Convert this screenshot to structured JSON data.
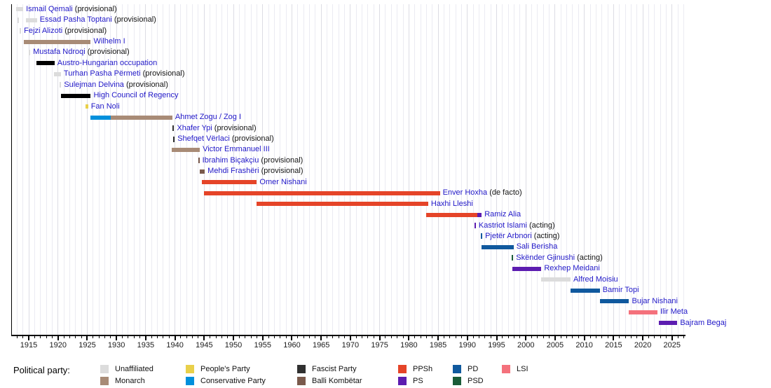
{
  "chart_data": {
    "type": "timeline",
    "axis": {
      "start": 1912,
      "end": 2027.3,
      "major_ticks": [
        1915,
        1920,
        1925,
        1930,
        1935,
        1940,
        1945,
        1950,
        1955,
        1960,
        1965,
        1970,
        1975,
        1980,
        1985,
        1990,
        1995,
        2000,
        2005,
        2010,
        2015,
        2020,
        2025
      ],
      "minor_tick_step": 1
    },
    "rows": [
      {
        "name": "Ismail Qemali",
        "qualifier": "(provisional)",
        "segments": [
          {
            "start": 1912.85,
            "end": 1914.05,
            "party": "Unaffiliated"
          }
        ]
      },
      {
        "name": "Essad Pasha Toptani",
        "qualifier": "(provisional)",
        "segments": [
          {
            "start": 1913.1,
            "end": 1913.4,
            "party": "Unaffiliated"
          },
          {
            "start": 1914.5,
            "end": 1916.4,
            "party": "Unaffiliated"
          }
        ]
      },
      {
        "name": "Fejzi Alizoti",
        "qualifier": "(provisional)",
        "segments": [
          {
            "start": 1913.45,
            "end": 1913.7,
            "party": "Unaffiliated"
          }
        ]
      },
      {
        "name": "Wilhelm I",
        "qualifier": "",
        "segments": [
          {
            "start": 1914.2,
            "end": 1925.6,
            "party": "Monarch"
          }
        ]
      },
      {
        "name": "Mustafa Ndroqi",
        "qualifier": "(provisional)",
        "segments": [
          {
            "start": 1915.0,
            "end": 1915.25,
            "party": "Unaffiliated"
          }
        ]
      },
      {
        "name": "Austro-Hungarian occupation",
        "qualifier": "",
        "segments": [
          {
            "start": 1916.3,
            "end": 1919.4,
            "party": "Black"
          }
        ]
      },
      {
        "name": "Turhan Pasha Përmeti",
        "qualifier": "(provisional)",
        "segments": [
          {
            "start": 1919.35,
            "end": 1920.5,
            "party": "Unaffiliated"
          }
        ]
      },
      {
        "name": "Sulejman Delvina",
        "qualifier": "(provisional)",
        "segments": [
          {
            "start": 1920.3,
            "end": 1920.55,
            "party": "Unaffiliated"
          }
        ]
      },
      {
        "name": "High Council of Regency",
        "qualifier": "",
        "segments": [
          {
            "start": 1920.5,
            "end": 1925.6,
            "party": "Black"
          }
        ]
      },
      {
        "name": "Fan Noli",
        "qualifier": "",
        "segments": [
          {
            "start": 1924.7,
            "end": 1925.15,
            "party": "People's Party"
          }
        ]
      },
      {
        "name": "Ahmet Zogu / Zog I",
        "qualifier": "",
        "segments": [
          {
            "start": 1925.5,
            "end": 1929.0,
            "party": "Conservative Party"
          },
          {
            "start": 1929.0,
            "end": 1939.55,
            "party": "Monarch"
          }
        ]
      },
      {
        "name": "Xhafer Ypi",
        "qualifier": "(provisional)",
        "segments": [
          {
            "start": 1939.6,
            "end": 1939.85,
            "party": "Fascist Party"
          }
        ]
      },
      {
        "name": "Shefqet Vërlaci",
        "qualifier": "(provisional)",
        "segments": [
          {
            "start": 1939.7,
            "end": 1939.95,
            "party": "Fascist Party"
          }
        ]
      },
      {
        "name": "Victor Emmanuel III",
        "qualifier": "",
        "segments": [
          {
            "start": 1939.45,
            "end": 1944.25,
            "party": "Monarch"
          }
        ]
      },
      {
        "name": "Ibrahim Biçakçiu",
        "qualifier": "(provisional)",
        "segments": [
          {
            "start": 1943.95,
            "end": 1944.2,
            "party": "Balli Kombëtar"
          }
        ]
      },
      {
        "name": "Mehdi Frashëri",
        "qualifier": "(provisional)",
        "segments": [
          {
            "start": 1944.2,
            "end": 1945.1,
            "party": "Balli Kombëtar"
          }
        ]
      },
      {
        "name": "Omer Nishani",
        "qualifier": "",
        "segments": [
          {
            "start": 1944.6,
            "end": 1954.0,
            "party": "PPSh"
          }
        ]
      },
      {
        "name": "Enver Hoxha",
        "qualifier": "(de facto)",
        "segments": [
          {
            "start": 1945.0,
            "end": 1985.3,
            "party": "PPSh"
          }
        ]
      },
      {
        "name": "Haxhi Lleshi",
        "qualifier": "",
        "segments": [
          {
            "start": 1954.0,
            "end": 1983.3,
            "party": "PPSh"
          }
        ]
      },
      {
        "name": "Ramiz Alia",
        "qualifier": "",
        "segments": [
          {
            "start": 1983.0,
            "end": 1991.7,
            "party": "PPSh"
          },
          {
            "start": 1991.7,
            "end": 1992.45,
            "party": "PS"
          }
        ]
      },
      {
        "name": "Kastriot Islami",
        "qualifier": "(acting)",
        "segments": [
          {
            "start": 1991.2,
            "end": 1991.45,
            "party": "PS"
          }
        ]
      },
      {
        "name": "Pjetër Arbnori",
        "qualifier": "(acting)",
        "segments": [
          {
            "start": 1992.3,
            "end": 1992.55,
            "party": "PD"
          }
        ]
      },
      {
        "name": "Sali Berisha",
        "qualifier": "",
        "segments": [
          {
            "start": 1992.45,
            "end": 1997.9,
            "party": "PD"
          }
        ]
      },
      {
        "name": "Skënder Gjinushi",
        "qualifier": "(acting)",
        "segments": [
          {
            "start": 1997.6,
            "end": 1997.85,
            "party": "PSD"
          }
        ]
      },
      {
        "name": "Rexhep Meidani",
        "qualifier": "",
        "segments": [
          {
            "start": 1997.7,
            "end": 2002.65,
            "party": "PS"
          }
        ]
      },
      {
        "name": "Alfred Moisiu",
        "qualifier": "",
        "segments": [
          {
            "start": 2002.65,
            "end": 2007.65,
            "party": "Unaffiliated"
          }
        ]
      },
      {
        "name": "Bamir Topi",
        "qualifier": "",
        "segments": [
          {
            "start": 2007.65,
            "end": 2012.65,
            "party": "PD"
          }
        ]
      },
      {
        "name": "Bujar Nishani",
        "qualifier": "",
        "segments": [
          {
            "start": 2012.65,
            "end": 2017.65,
            "party": "PD"
          }
        ]
      },
      {
        "name": "Ilir Meta",
        "qualifier": "",
        "segments": [
          {
            "start": 2017.6,
            "end": 2022.5,
            "party": "LSI"
          }
        ]
      },
      {
        "name": "Bajram Begaj",
        "qualifier": "",
        "segments": [
          {
            "start": 2022.7,
            "end": 2025.9,
            "party": "PS"
          }
        ]
      }
    ],
    "legend": {
      "title": "Political party:",
      "columns": [
        [
          "Unaffiliated",
          "Monarch"
        ],
        [
          "People's Party",
          "Conservative Party"
        ],
        [
          "Fascist Party",
          "Balli Kombëtar"
        ],
        [
          "PPSh",
          "PS"
        ],
        [
          "PD",
          "PSD"
        ],
        [
          "LSI"
        ]
      ]
    },
    "party_colors": {
      "Unaffiliated": "#dcdcdc",
      "Monarch": "#a88b76",
      "People's Party": "#e9d04a",
      "Conservative Party": "#0090dc",
      "Fascist Party": "#303030",
      "Balli Kombëtar": "#7a5a4c",
      "PPSh": "#e54428",
      "PS": "#5c1cb0",
      "PD": "#10599e",
      "PSD": "#1a5c38",
      "LSI": "#f4717c",
      "Black": "#000000"
    },
    "style_colors": {
      "name_link": "#2118c8",
      "qualifier_text": "#141414",
      "axis_text": "#1a1a1a",
      "gridline_minor": "#ebebf2",
      "gridline_major": "#dcdce4"
    }
  }
}
